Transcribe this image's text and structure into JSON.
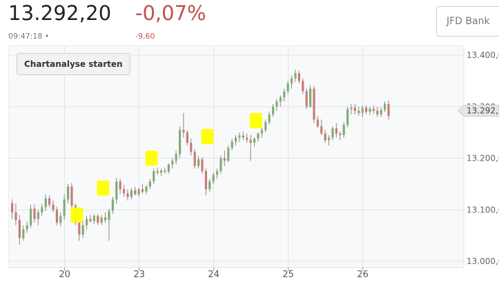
{
  "quote": {
    "price": "13.292,20",
    "time": "09:47:18 •",
    "change_pct": "-0,07%",
    "change_abs": "-9,60"
  },
  "broker_select": {
    "value": "JFD Bank"
  },
  "chart_button": {
    "label": "Chartanalyse starten"
  },
  "colors": {
    "up": "#7fae73",
    "down": "#c97a74",
    "marker": "#ffff00",
    "negative": "#c0504d"
  },
  "chart_data": {
    "type": "candlestick",
    "title": "",
    "x_ticks": [
      "20",
      "23",
      "24",
      "25",
      "26"
    ],
    "y_ticks": [
      "13.400,0",
      "13.300,0",
      "13.200,0",
      "13.100,0",
      "13.000,0"
    ],
    "ylim": [
      13000,
      13400
    ],
    "last_price_label": "13.292,2",
    "last_price": 13292.2,
    "grid": true,
    "candles_ohlc": [
      [
        13113,
        13120,
        13082,
        13095
      ],
      [
        13095,
        13112,
        13070,
        13080
      ],
      [
        13080,
        13090,
        13032,
        13045
      ],
      [
        13045,
        13070,
        13040,
        13062
      ],
      [
        13062,
        13078,
        13055,
        13070
      ],
      [
        13070,
        13110,
        13065,
        13102
      ],
      [
        13102,
        13110,
        13075,
        13082
      ],
      [
        13082,
        13100,
        13070,
        13095
      ],
      [
        13095,
        13112,
        13088,
        13105
      ],
      [
        13105,
        13130,
        13098,
        13122
      ],
      [
        13122,
        13128,
        13105,
        13110
      ],
      [
        13110,
        13118,
        13095,
        13100
      ],
      [
        13100,
        13106,
        13070,
        13075
      ],
      [
        13075,
        13095,
        13068,
        13088
      ],
      [
        13088,
        13130,
        13080,
        13120
      ],
      [
        13120,
        13150,
        13112,
        13145
      ],
      [
        13145,
        13152,
        13100,
        13108
      ],
      [
        13108,
        13112,
        13070,
        13075
      ],
      [
        13075,
        13082,
        13040,
        13052
      ],
      [
        13052,
        13078,
        13045,
        13070
      ],
      [
        13070,
        13088,
        13062,
        13082
      ],
      [
        13082,
        13090,
        13075,
        13078
      ],
      [
        13078,
        13092,
        13072,
        13088
      ],
      [
        13088,
        13092,
        13070,
        13075
      ],
      [
        13075,
        13090,
        13070,
        13085
      ],
      [
        13085,
        13095,
        13075,
        13080
      ],
      [
        13080,
        13102,
        13040,
        13098
      ],
      [
        13098,
        13125,
        13092,
        13120
      ],
      [
        13120,
        13162,
        13112,
        13155
      ],
      [
        13155,
        13160,
        13130,
        13140
      ],
      [
        13140,
        13148,
        13125,
        13132
      ],
      [
        13132,
        13140,
        13118,
        13125
      ],
      [
        13125,
        13142,
        13120,
        13138
      ],
      [
        13138,
        13145,
        13128,
        13130
      ],
      [
        13130,
        13142,
        13126,
        13140
      ],
      [
        13140,
        13150,
        13132,
        13135
      ],
      [
        13135,
        13148,
        13130,
        13145
      ],
      [
        13145,
        13160,
        13140,
        13155
      ],
      [
        13155,
        13180,
        13150,
        13175
      ],
      [
        13175,
        13182,
        13168,
        13172
      ],
      [
        13172,
        13180,
        13165,
        13176
      ],
      [
        13176,
        13182,
        13170,
        13174
      ],
      [
        13174,
        13190,
        13170,
        13188
      ],
      [
        13188,
        13200,
        13180,
        13195
      ],
      [
        13195,
        13215,
        13188,
        13208
      ],
      [
        13208,
        13262,
        13200,
        13255
      ],
      [
        13255,
        13288,
        13240,
        13250
      ],
      [
        13250,
        13255,
        13225,
        13230
      ],
      [
        13230,
        13238,
        13205,
        13212
      ],
      [
        13212,
        13218,
        13180,
        13185
      ],
      [
        13185,
        13205,
        13180,
        13198
      ],
      [
        13198,
        13202,
        13170,
        13175
      ],
      [
        13175,
        13180,
        13128,
        13140
      ],
      [
        13140,
        13160,
        13135,
        13155
      ],
      [
        13155,
        13172,
        13150,
        13168
      ],
      [
        13168,
        13180,
        13160,
        13175
      ],
      [
        13175,
        13205,
        13170,
        13200
      ],
      [
        13200,
        13215,
        13185,
        13195
      ],
      [
        13195,
        13225,
        13192,
        13220
      ],
      [
        13220,
        13238,
        13215,
        13232
      ],
      [
        13232,
        13245,
        13225,
        13240
      ],
      [
        13240,
        13250,
        13232,
        13244
      ],
      [
        13244,
        13252,
        13235,
        13240
      ],
      [
        13240,
        13248,
        13230,
        13236
      ],
      [
        13236,
        13245,
        13195,
        13230
      ],
      [
        13230,
        13240,
        13222,
        13238
      ],
      [
        13238,
        13250,
        13232,
        13248
      ],
      [
        13248,
        13260,
        13240,
        13255
      ],
      [
        13255,
        13275,
        13250,
        13270
      ],
      [
        13270,
        13290,
        13265,
        13285
      ],
      [
        13285,
        13305,
        13280,
        13300
      ],
      [
        13300,
        13315,
        13292,
        13310
      ],
      [
        13310,
        13322,
        13300,
        13318
      ],
      [
        13318,
        13335,
        13310,
        13330
      ],
      [
        13330,
        13350,
        13325,
        13345
      ],
      [
        13345,
        13360,
        13335,
        13355
      ],
      [
        13355,
        13372,
        13348,
        13365
      ],
      [
        13365,
        13370,
        13345,
        13350
      ],
      [
        13350,
        13355,
        13325,
        13330
      ],
      [
        13330,
        13335,
        13295,
        13300
      ],
      [
        13300,
        13342,
        13298,
        13335
      ],
      [
        13335,
        13340,
        13268,
        13275
      ],
      [
        13275,
        13282,
        13258,
        13262
      ],
      [
        13262,
        13275,
        13245,
        13248
      ],
      [
        13248,
        13255,
        13230,
        13235
      ],
      [
        13235,
        13245,
        13225,
        13240
      ],
      [
        13240,
        13262,
        13235,
        13258
      ],
      [
        13258,
        13268,
        13240,
        13248
      ],
      [
        13248,
        13252,
        13235,
        13245
      ],
      [
        13245,
        13270,
        13240,
        13265
      ],
      [
        13265,
        13300,
        13260,
        13295
      ],
      [
        13295,
        13305,
        13285,
        13298
      ],
      [
        13298,
        13305,
        13285,
        13292
      ],
      [
        13292,
        13300,
        13282,
        13288
      ],
      [
        13288,
        13302,
        13280,
        13298
      ],
      [
        13298,
        13303,
        13285,
        13290
      ],
      [
        13290,
        13300,
        13284,
        13296
      ],
      [
        13296,
        13302,
        13286,
        13292
      ],
      [
        13292,
        13300,
        13280,
        13285
      ],
      [
        13285,
        13298,
        13280,
        13294
      ],
      [
        13294,
        13310,
        13290,
        13305
      ],
      [
        13305,
        13312,
        13275,
        13282
      ]
    ],
    "highlight_markers": [
      {
        "x": 17.5,
        "y": 13090
      },
      {
        "x": 24.5,
        "y": 13142
      },
      {
        "x": 37.5,
        "y": 13200
      },
      {
        "x": 52.5,
        "y": 13242
      },
      {
        "x": 65.5,
        "y": 13273
      }
    ]
  }
}
